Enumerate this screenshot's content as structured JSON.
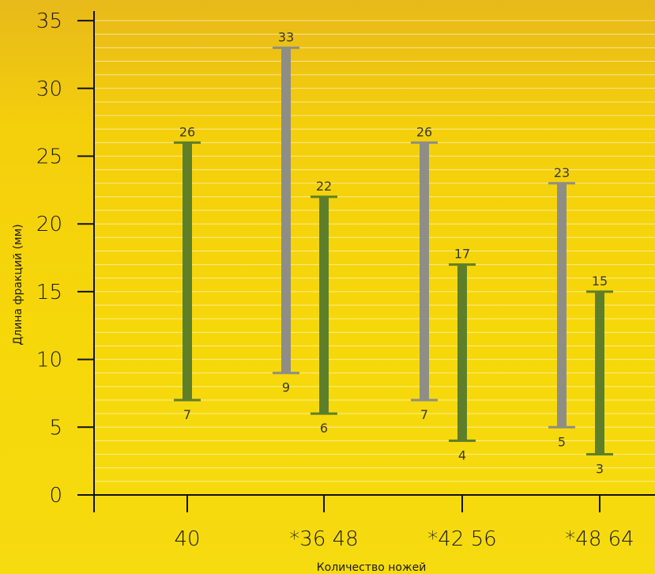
{
  "chart_data": {
    "type": "range-bar",
    "ylabel": "Длина фракций (мм)",
    "xlabel": "Количество ножей",
    "ylim": [
      0,
      35
    ],
    "yticks": [
      0,
      5,
      10,
      15,
      20,
      25,
      30,
      35
    ],
    "grid": true,
    "categories": [
      "40",
      "*36 48",
      "*42 56",
      "*48 64"
    ],
    "bars": [
      {
        "group": 0,
        "slot": "right",
        "low": 7,
        "high": 26,
        "color": "#5e7f2a"
      },
      {
        "group": 1,
        "slot": "left",
        "low": 9,
        "high": 33,
        "color": "#8e8e86"
      },
      {
        "group": 1,
        "slot": "right",
        "low": 6,
        "high": 22,
        "color": "#5e7f2a"
      },
      {
        "group": 2,
        "slot": "left",
        "low": 7,
        "high": 26,
        "color": "#8e8e86"
      },
      {
        "group": 2,
        "slot": "right",
        "low": 4,
        "high": 17,
        "color": "#5e7f2a"
      },
      {
        "group": 3,
        "slot": "left",
        "low": 5,
        "high": 23,
        "color": "#8e8e86"
      },
      {
        "group": 3,
        "slot": "right",
        "low": 3,
        "high": 15,
        "color": "#5e7f2a"
      }
    ]
  }
}
